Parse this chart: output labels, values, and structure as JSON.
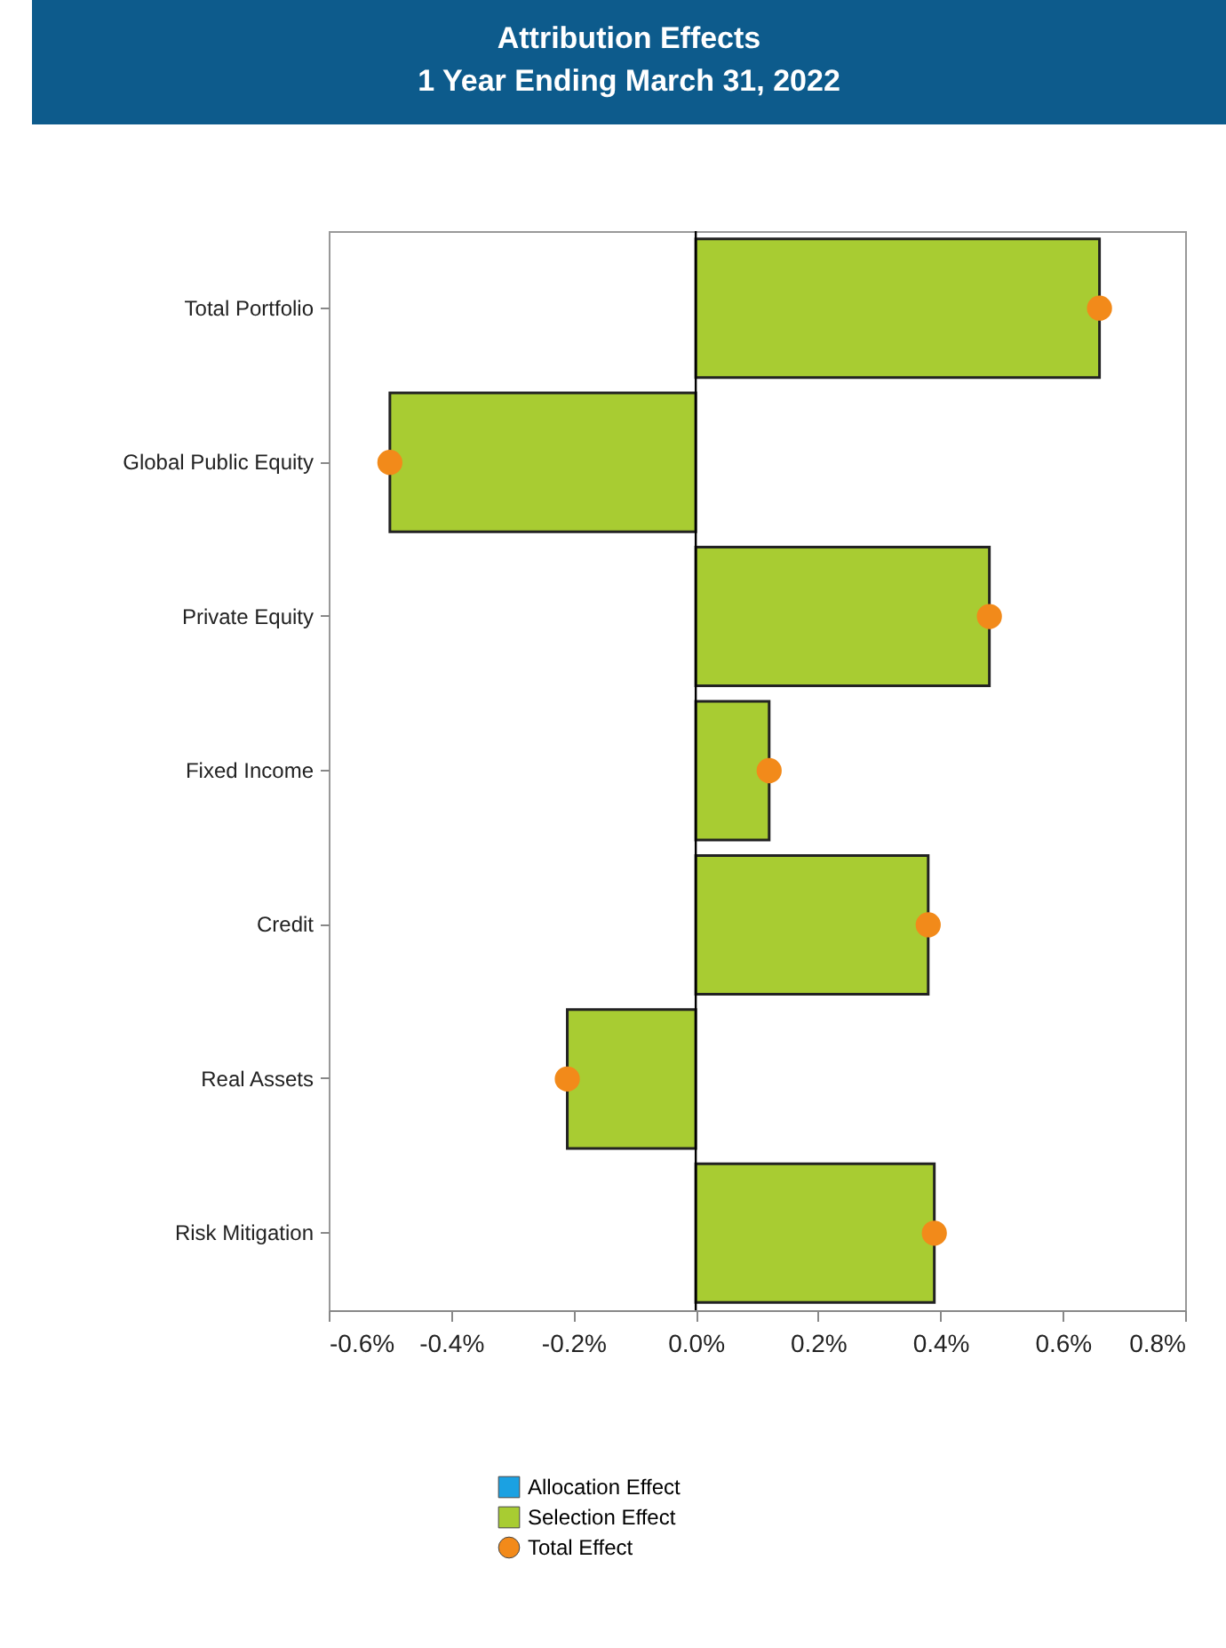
{
  "chart_data": {
    "type": "bar",
    "orientation": "horizontal",
    "title": "Attribution Effects",
    "subtitle": "1 Year Ending March 31, 2022",
    "categories": [
      "Total Portfolio",
      "Global Public Equity",
      "Private Equity",
      "Fixed Income",
      "Credit",
      "Real Assets",
      "Risk Mitigation"
    ],
    "series": [
      {
        "name": "Allocation Effect",
        "color": "#1ba1e2",
        "values": [
          null,
          null,
          null,
          null,
          null,
          null,
          null
        ]
      },
      {
        "name": "Selection Effect",
        "color": "#a8cc32",
        "values": [
          0.66,
          -0.5,
          0.48,
          0.12,
          0.38,
          -0.21,
          0.39
        ]
      },
      {
        "name": "Total Effect",
        "type": "scatter",
        "color": "#f28a1a",
        "marker": "circle",
        "values": [
          0.66,
          -0.5,
          0.48,
          0.12,
          0.38,
          -0.21,
          0.39
        ]
      }
    ],
    "xlim": [
      -0.6,
      0.8
    ],
    "xticks": [
      {
        "value": -0.6,
        "label": "-0.6%"
      },
      {
        "value": -0.4,
        "label": "-0.4%"
      },
      {
        "value": -0.2,
        "label": "-0.2%"
      },
      {
        "value": 0,
        "label": "0.0%"
      },
      {
        "value": 0.2,
        "label": "0.2%"
      },
      {
        "value": 0.4,
        "label": "0.4%"
      },
      {
        "value": 0.6,
        "label": "0.6%"
      },
      {
        "value": 0.8,
        "label": "0.8%"
      }
    ],
    "ref_lines": [
      {
        "axis": "x",
        "value": 0,
        "color": "#000000"
      }
    ],
    "grid": false,
    "legend": "bottom"
  }
}
